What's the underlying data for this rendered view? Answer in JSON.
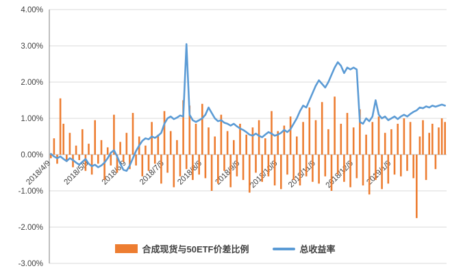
{
  "chart_data": {
    "type": "bar",
    "title": "",
    "xlabel": "",
    "ylabel": "",
    "y_axis": {
      "min": -3,
      "max": 4,
      "tick_step": 1,
      "tick_labels": [
        "4.00%",
        "3.00%",
        "2.00%",
        "1.00%",
        "0.00%",
        "-1.00%",
        "-2.00%",
        "-3.00%"
      ]
    },
    "x_ticks": [
      {
        "label": "2018/4/9",
        "index": 0
      },
      {
        "label": "2018/5/9",
        "index": 12
      },
      {
        "label": "2018/6/9",
        "index": 24
      },
      {
        "label": "2018/7/9",
        "index": 36
      },
      {
        "label": "2018/8/9",
        "index": 48
      },
      {
        "label": "2018/9/9",
        "index": 60
      },
      {
        "label": "2018/10/9",
        "index": 72
      },
      {
        "label": "2018/11/9",
        "index": 84
      },
      {
        "label": "2018/12/9",
        "index": 96
      },
      {
        "label": "2019/1/9",
        "index": 108
      }
    ],
    "legend_position": "bottom",
    "grid": true,
    "series": [
      {
        "name": "合成现货与50ETF价差比例",
        "type": "bar",
        "color": "#ED7D31",
        "values": [
          -0.1,
          0.45,
          -0.25,
          1.55,
          0.85,
          -0.2,
          0.6,
          -0.35,
          0.25,
          -0.15,
          0.7,
          -0.45,
          0.3,
          -0.55,
          0.95,
          -0.25,
          0.4,
          -0.7,
          0.2,
          -0.3,
          1.1,
          -0.5,
          0.35,
          -0.2,
          0.6,
          -0.4,
          1.15,
          -0.3,
          0.5,
          -0.6,
          0.25,
          -0.45,
          0.9,
          -0.25,
          0.55,
          -0.8,
          1.2,
          -0.5,
          0.65,
          -0.9,
          0.4,
          -0.6,
          1.5,
          -0.4,
          1.35,
          -0.7,
          0.85,
          -0.55,
          1.4,
          -0.65,
          0.75,
          -1.0,
          0.5,
          -0.8,
          1.1,
          -0.45,
          0.65,
          -0.9,
          0.4,
          -0.6,
          0.85,
          -0.7,
          0.55,
          -1.05,
          0.75,
          -0.5,
          0.95,
          -0.75,
          0.45,
          -0.6,
          1.2,
          -0.85,
          0.65,
          -0.95,
          0.8,
          -0.55,
          1.05,
          -0.7,
          0.5,
          -0.85,
          0.9,
          -0.6,
          1.3,
          -0.75,
          0.95,
          -0.8,
          1.45,
          -0.6,
          0.7,
          -1.0,
          1.6,
          -0.55,
          0.85,
          -0.75,
          1.15,
          -0.9,
          0.75,
          -0.65,
          1.25,
          -0.85,
          0.55,
          -1.1,
          0.9,
          -0.7,
          1.05,
          -0.95,
          0.6,
          -0.8,
          0.7,
          -0.55,
          0.85,
          -0.6,
          1.0,
          -0.45,
          0.9,
          -0.65,
          -1.75,
          0.5,
          0.95,
          -0.7,
          0.6,
          0.85,
          -0.4,
          0.75,
          1.0,
          0.9
        ]
      },
      {
        "name": "总收益率",
        "type": "line",
        "color": "#5B9BD5",
        "values": [
          0.02,
          -0.05,
          -0.1,
          -0.05,
          -0.12,
          -0.18,
          -0.1,
          -0.15,
          -0.22,
          -0.28,
          -0.2,
          -0.12,
          -0.25,
          -0.32,
          -0.28,
          -0.35,
          -0.3,
          -0.22,
          -0.1,
          0.05,
          0.12,
          -0.05,
          -0.25,
          -0.42,
          -0.45,
          -0.3,
          -0.1,
          0.1,
          0.25,
          0.38,
          0.45,
          0.42,
          0.5,
          0.46,
          0.52,
          0.6,
          0.85,
          1.0,
          1.05,
          0.98,
          1.02,
          1.08,
          1.05,
          3.05,
          1.1,
          0.95,
          0.9,
          0.95,
          1.0,
          1.1,
          1.3,
          1.15,
          1.0,
          0.92,
          0.95,
          0.88,
          0.85,
          0.8,
          0.85,
          0.78,
          0.72,
          0.68,
          0.62,
          0.55,
          0.52,
          0.58,
          0.52,
          0.48,
          0.55,
          0.62,
          0.58,
          0.52,
          0.55,
          0.6,
          0.68,
          0.62,
          0.7,
          0.85,
          1.0,
          1.2,
          1.35,
          1.3,
          1.5,
          1.7,
          1.9,
          2.05,
          1.95,
          1.85,
          2.0,
          2.2,
          2.4,
          2.55,
          2.45,
          2.25,
          2.4,
          2.35,
          2.4,
          2.35,
          0.9,
          0.85,
          1.0,
          0.92,
          1.05,
          1.5,
          1.1,
          1.0,
          1.05,
          0.95,
          1.0,
          1.05,
          0.98,
          1.05,
          1.1,
          1.05,
          1.12,
          1.18,
          1.22,
          1.3,
          1.28,
          1.33,
          1.3,
          1.35,
          1.32,
          1.35,
          1.38,
          1.35
        ]
      }
    ]
  },
  "colors": {
    "bar": "#ED7D31",
    "line": "#5B9BD5",
    "gridline": "#D9D9D9",
    "zero_axis": "#BFBFBF",
    "y_axis_line": "#7F7F7F",
    "axis_text": "#404040",
    "background": "#FFFFFF"
  }
}
